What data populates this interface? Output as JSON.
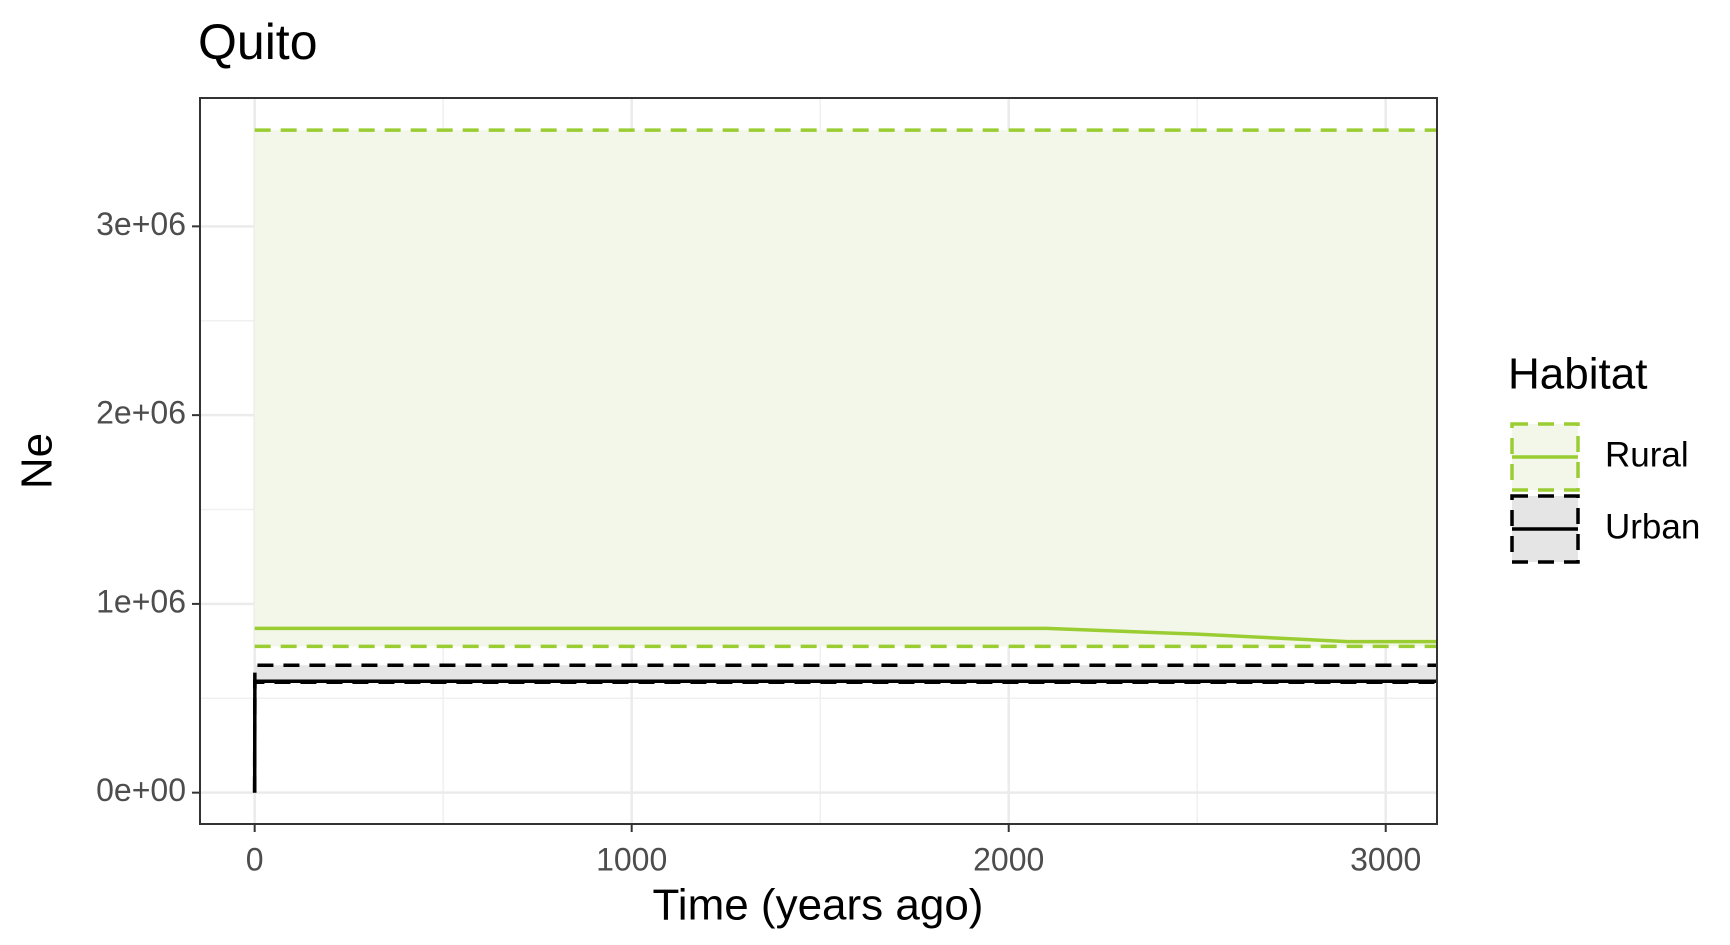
{
  "chart_data": {
    "type": "line",
    "title": "Quito",
    "x_label": "Time (years ago)",
    "y_label": "Ne",
    "legend_title": "Habitat",
    "legend_position": "right",
    "grid": true,
    "xlim": [
      -145,
      3136
    ],
    "xticks": [
      0,
      1000,
      2000,
      3000
    ],
    "ylim": [
      -166000,
      3680000
    ],
    "yticks": [
      {
        "value": 0,
        "label": "0e+00"
      },
      {
        "value": 1000000,
        "label": "1e+06"
      },
      {
        "value": 2000000,
        "label": "2e+06"
      },
      {
        "value": 3000000,
        "label": "3e+06"
      }
    ],
    "series": [
      {
        "name": "Rural",
        "color": "#9acd32",
        "fill": "#f3f7e9",
        "x": [
          0,
          2100,
          2500,
          2900,
          3136
        ],
        "values": [
          870000,
          870000,
          840000,
          800000,
          800000
        ],
        "lower": [
          775000,
          775000,
          775000,
          775000,
          775000
        ],
        "upper": [
          3510000,
          3510000,
          3510000,
          3510000,
          3510000
        ]
      },
      {
        "name": "Urban",
        "color": "#000000",
        "fill": "#e5e5e5",
        "x": [
          0,
          0.5,
          3136
        ],
        "values": [
          0,
          590000,
          590000
        ],
        "lower": [
          0,
          585000,
          585000
        ],
        "upper": [
          0,
          675000,
          675000
        ]
      }
    ]
  }
}
